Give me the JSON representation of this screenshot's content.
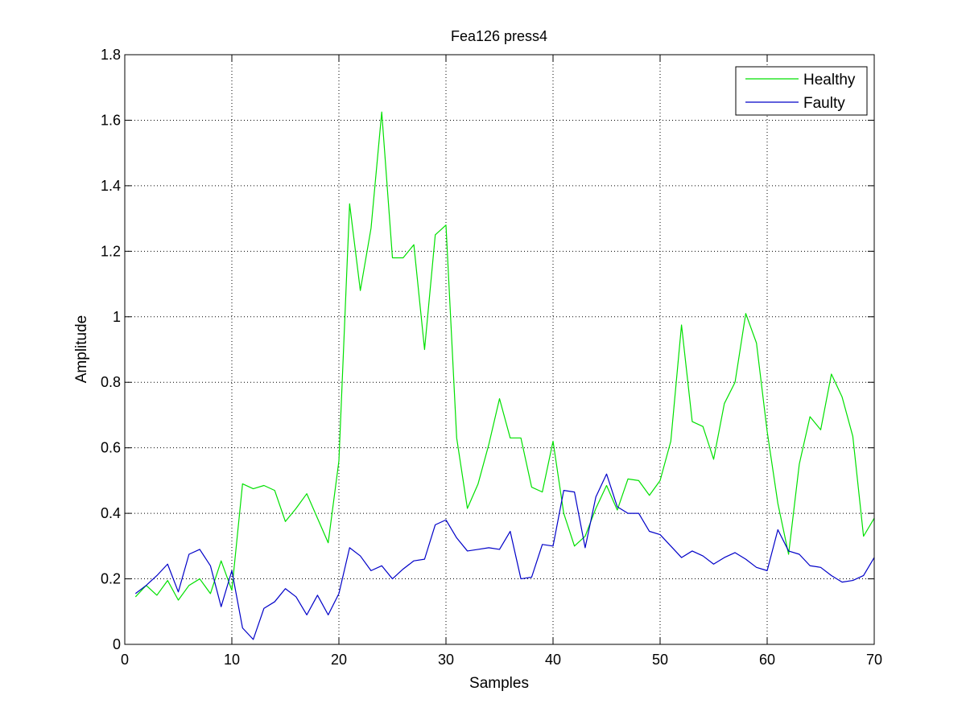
{
  "chart_data": {
    "type": "line",
    "title": "Fea126  press4",
    "xlabel": "Samples",
    "ylabel": "Amplitude",
    "xlim": [
      0,
      70
    ],
    "ylim": [
      0,
      1.8
    ],
    "xticks": [
      0,
      10,
      20,
      30,
      40,
      50,
      60,
      70
    ],
    "yticks": [
      0,
      0.2,
      0.4,
      0.6,
      0.8,
      1,
      1.2,
      1.4,
      1.6,
      1.8
    ],
    "xtick_labels": [
      "0",
      "10",
      "20",
      "30",
      "40",
      "50",
      "60",
      "70"
    ],
    "ytick_labels": [
      "0",
      "0.2",
      "0.4",
      "0.6",
      "0.8",
      "1",
      "1.2",
      "1.4",
      "1.6",
      "1.8"
    ],
    "grid": true,
    "legend": "top-right",
    "x": [
      1,
      2,
      3,
      4,
      5,
      6,
      7,
      8,
      9,
      10,
      11,
      12,
      13,
      14,
      15,
      16,
      17,
      18,
      19,
      20,
      21,
      22,
      23,
      24,
      25,
      26,
      27,
      28,
      29,
      30,
      31,
      32,
      33,
      34,
      35,
      36,
      37,
      38,
      39,
      40,
      41,
      42,
      43,
      44,
      45,
      46,
      47,
      48,
      49,
      50,
      51,
      52,
      53,
      54,
      55,
      56,
      57,
      58,
      59,
      60,
      61,
      62,
      63,
      64,
      65,
      66,
      67,
      68,
      69,
      70
    ],
    "series": [
      {
        "name": "Healthy",
        "color": "#00e000",
        "values": [
          0.145,
          0.18,
          0.15,
          0.195,
          0.135,
          0.18,
          0.2,
          0.155,
          0.255,
          0.165,
          0.49,
          0.475,
          0.485,
          0.47,
          0.375,
          0.415,
          0.46,
          0.385,
          0.31,
          0.56,
          1.345,
          1.08,
          1.27,
          1.625,
          1.18,
          1.18,
          1.22,
          0.9,
          1.25,
          1.28,
          0.63,
          0.415,
          0.49,
          0.61,
          0.75,
          0.63,
          0.63,
          0.48,
          0.465,
          0.62,
          0.4,
          0.3,
          0.33,
          0.415,
          0.485,
          0.41,
          0.505,
          0.5,
          0.455,
          0.5,
          0.62,
          0.975,
          0.68,
          0.665,
          0.565,
          0.735,
          0.8,
          1.01,
          0.92,
          0.65,
          0.43,
          0.275,
          0.55,
          0.695,
          0.655,
          0.825,
          0.755,
          0.635,
          0.33,
          0.385
        ]
      },
      {
        "name": "Faulty",
        "color": "#0000c8",
        "values": [
          0.155,
          0.18,
          0.21,
          0.245,
          0.16,
          0.275,
          0.29,
          0.24,
          0.115,
          0.225,
          0.05,
          0.015,
          0.11,
          0.13,
          0.17,
          0.145,
          0.09,
          0.15,
          0.09,
          0.155,
          0.295,
          0.27,
          0.225,
          0.24,
          0.2,
          0.23,
          0.255,
          0.26,
          0.365,
          0.38,
          0.325,
          0.285,
          0.29,
          0.295,
          0.29,
          0.345,
          0.2,
          0.205,
          0.305,
          0.3,
          0.47,
          0.465,
          0.295,
          0.45,
          0.52,
          0.42,
          0.4,
          0.4,
          0.345,
          0.335,
          0.3,
          0.265,
          0.285,
          0.27,
          0.245,
          0.265,
          0.28,
          0.26,
          0.235,
          0.225,
          0.35,
          0.285,
          0.275,
          0.24,
          0.235,
          0.21,
          0.19,
          0.195,
          0.21,
          0.265
        ]
      }
    ]
  }
}
